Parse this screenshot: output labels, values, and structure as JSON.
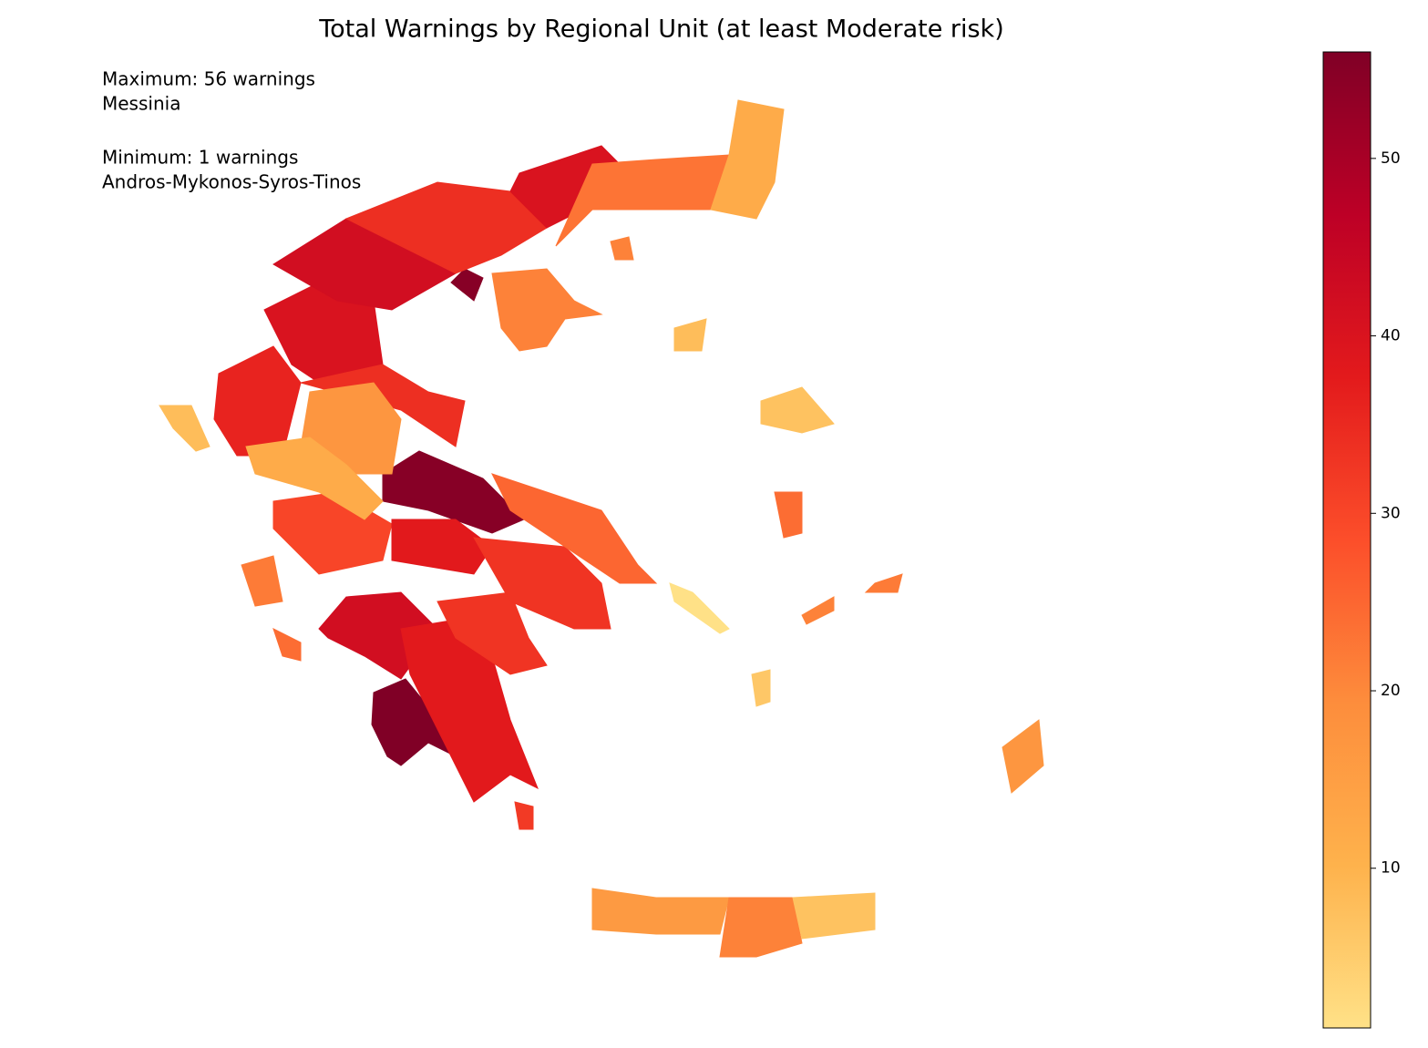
{
  "chart_data": {
    "type": "choropleth",
    "title": "Total Warnings by Regional Unit (at least Moderate risk)",
    "annotations": [
      "Maximum: 56 warnings",
      "Messinia",
      "Minimum: 1 warnings",
      "Andros-Mykonos-Syros-Tinos"
    ],
    "values": [
      56,
      55,
      55,
      42,
      38,
      33,
      30,
      38,
      33,
      25,
      36,
      40,
      34,
      17,
      12,
      42,
      34,
      40,
      23,
      12,
      21,
      8,
      22,
      24,
      16,
      21,
      7,
      7,
      24,
      17,
      21,
      1,
      6,
      21,
      8,
      32,
      22
    ],
    "clim": [
      1,
      56
    ],
    "cticks": [
      10,
      20,
      30,
      40,
      50
    ],
    "colors": [
      "#ffe187",
      "#feb24c",
      "#fd8d3c",
      "#fc4e2a",
      "#e31a1c",
      "#bd0026",
      "#800026"
    ]
  }
}
